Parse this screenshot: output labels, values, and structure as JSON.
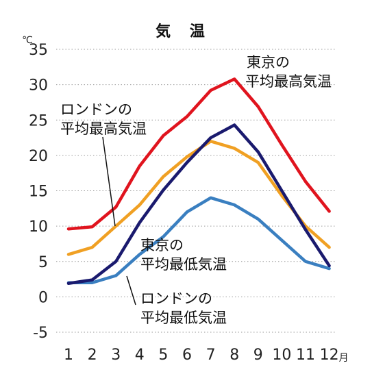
{
  "chart_data": {
    "type": "line",
    "title": "気 温",
    "yunit": "℃",
    "xunit": "月",
    "ylim": [
      -5,
      35
    ],
    "yticks": [
      -5,
      0,
      5,
      10,
      15,
      20,
      25,
      30,
      35
    ],
    "x": [
      1,
      2,
      3,
      4,
      5,
      6,
      7,
      8,
      9,
      10,
      11,
      12
    ],
    "grid": true,
    "series": [
      {
        "name": "東京の平均最高気温",
        "line1": "東京の",
        "line2": "平均最高気温",
        "color": "#e0141e",
        "values": [
          9.6,
          9.9,
          12.7,
          18.5,
          22.8,
          25.5,
          29.2,
          30.8,
          26.9,
          21.5,
          16.3,
          12.1
        ]
      },
      {
        "name": "ロンドンの平均最高気温",
        "line1": "ロンドンの",
        "line2": "平均最高気温",
        "color": "#f0a023",
        "values": [
          6.0,
          7.0,
          10.0,
          13.0,
          17.0,
          19.8,
          22.0,
          21.0,
          19.0,
          14.3,
          10.0,
          7.0
        ]
      },
      {
        "name": "東京の平均最低気温",
        "line1": "東京の",
        "line2": "平均最低気温",
        "color": "#1a1a6e",
        "values": [
          1.9,
          2.4,
          5.0,
          10.5,
          15.1,
          19.0,
          22.5,
          24.3,
          20.5,
          15.0,
          9.5,
          4.4
        ]
      },
      {
        "name": "ロンドンの平均最低気温",
        "line1": "ロンドンの",
        "line2": "平均最低気温",
        "color": "#3a7fc0",
        "values": [
          2.0,
          2.0,
          3.0,
          6.0,
          8.5,
          12.0,
          14.0,
          13.0,
          11.0,
          8.0,
          5.0,
          4.0
        ]
      }
    ]
  }
}
